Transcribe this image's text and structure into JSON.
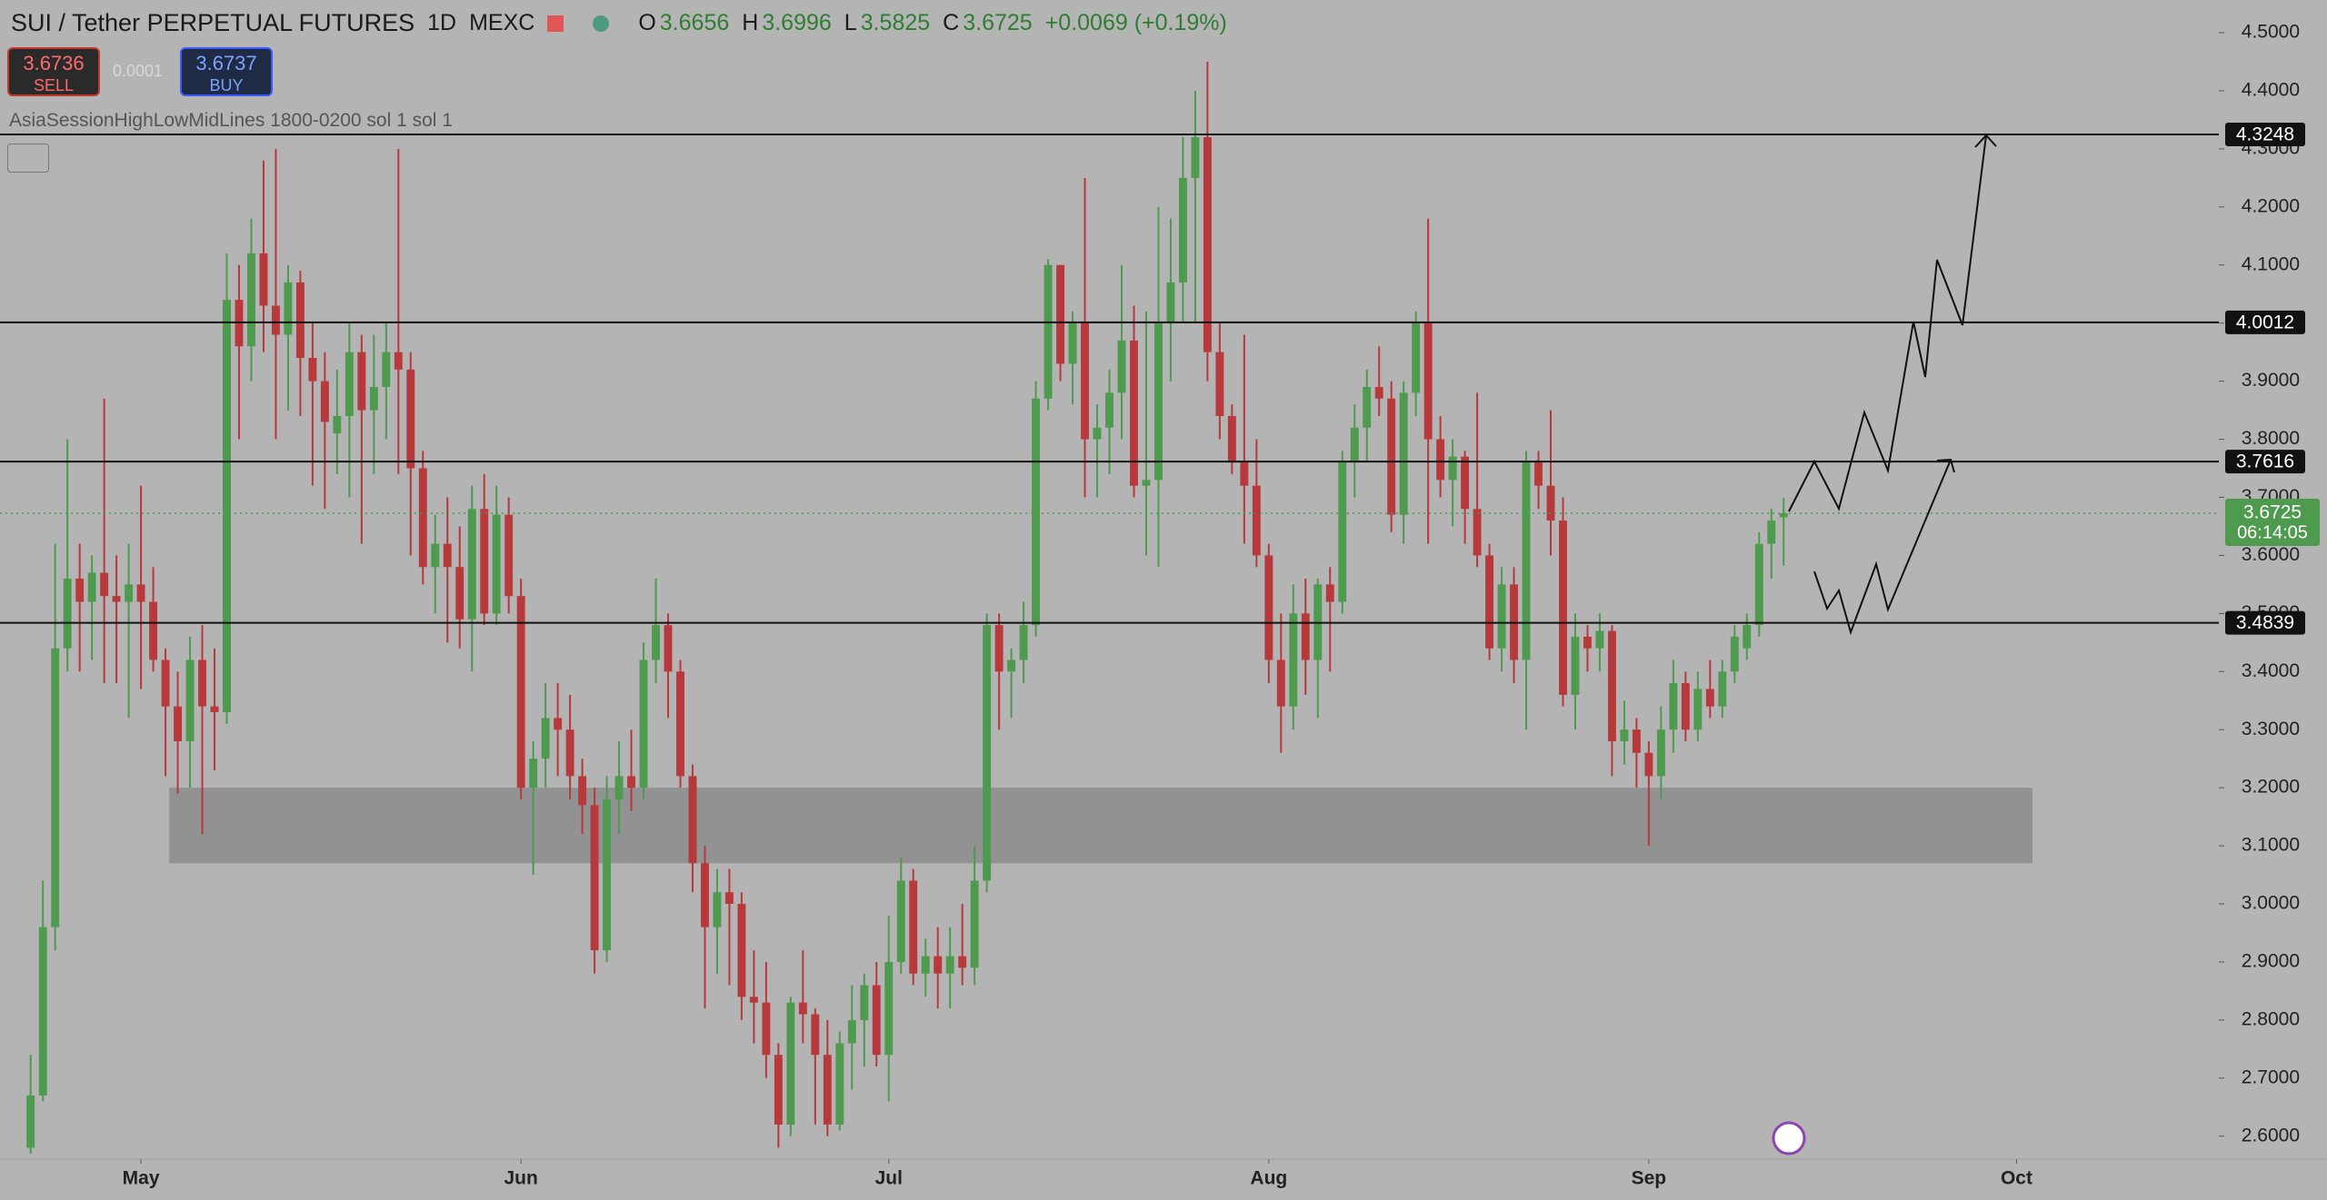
{
  "header": {
    "symbol": "SUI / Tether PERPETUAL FUTURES",
    "interval": "1D",
    "exchange": "MEXC",
    "open_key": "O",
    "high_key": "H",
    "low_key": "L",
    "close_key": "C",
    "change": "+0.0069 (+0.19%)",
    "sell_price": "3.6736",
    "sell_label": "SELL",
    "spread": "0.0001",
    "buy_price": "3.6737",
    "buy_label": "BUY",
    "indicator": "AsiaSessionHighLowMidLines 1800-0200 sol 1 sol 1"
  },
  "chart_data": {
    "type": "candlestick",
    "up_color": "#4e9a4e",
    "down_color": "#b8393c",
    "ylim": [
      2.5605,
      4.5563
    ],
    "yticks": [
      {
        "value": 2.6,
        "label": "2.6000"
      },
      {
        "value": 2.7,
        "label": "2.7000"
      },
      {
        "value": 2.8,
        "label": "2.8000"
      },
      {
        "value": 2.9,
        "label": "2.9000"
      },
      {
        "value": 3.0,
        "label": "3.0000"
      },
      {
        "value": 3.1,
        "label": "3.1000"
      },
      {
        "value": 3.2,
        "label": "3.2000"
      },
      {
        "value": 3.3,
        "label": "3.3000"
      },
      {
        "value": 3.4,
        "label": "3.4000"
      },
      {
        "value": 3.5,
        "label": "3.5000"
      },
      {
        "value": 3.6,
        "label": "3.6000"
      },
      {
        "value": 3.7,
        "label": "3.7000"
      },
      {
        "value": 3.8,
        "label": "3.8000"
      },
      {
        "value": 3.9,
        "label": "3.9000"
      },
      {
        "value": 4.0,
        "label": "4.0000"
      },
      {
        "value": 4.1,
        "label": "4.1000"
      },
      {
        "value": 4.2,
        "label": "4.2000"
      },
      {
        "value": 4.3,
        "label": "4.3000"
      },
      {
        "value": 4.4,
        "label": "4.4000"
      },
      {
        "value": 4.5,
        "label": "4.5000"
      }
    ],
    "xlim": [
      -2.5,
      178.5
    ],
    "xticks": [
      {
        "value": 9,
        "label": "May"
      },
      {
        "value": 40,
        "label": "Jun"
      },
      {
        "value": 70,
        "label": "Jul"
      },
      {
        "value": 101,
        "label": "Aug"
      },
      {
        "value": 132,
        "label": "Sep"
      },
      {
        "value": 162,
        "label": "Oct"
      }
    ],
    "levels": [
      4.3248,
      4.0012,
      3.7616,
      3.4839
    ],
    "zone": {
      "top": 3.2,
      "bottom": 3.07,
      "start": 11.3,
      "end": 163.3
    },
    "countdown": "06:14:05",
    "ohlc": [
      [
        2.58,
        2.74,
        2.57,
        2.67
      ],
      [
        2.67,
        3.04,
        2.66,
        2.96
      ],
      [
        2.96,
        3.62,
        2.92,
        3.44
      ],
      [
        3.44,
        3.8,
        3.4,
        3.56
      ],
      [
        3.56,
        3.62,
        3.4,
        3.52
      ],
      [
        3.52,
        3.6,
        3.42,
        3.57
      ],
      [
        3.57,
        3.87,
        3.38,
        3.53
      ],
      [
        3.53,
        3.6,
        3.38,
        3.52
      ],
      [
        3.52,
        3.62,
        3.32,
        3.55
      ],
      [
        3.55,
        3.72,
        3.37,
        3.52
      ],
      [
        3.52,
        3.58,
        3.4,
        3.42
      ],
      [
        3.42,
        3.44,
        3.22,
        3.34
      ],
      [
        3.34,
        3.4,
        3.19,
        3.28
      ],
      [
        3.28,
        3.46,
        3.2,
        3.42
      ],
      [
        3.42,
        3.48,
        3.12,
        3.34
      ],
      [
        3.34,
        3.44,
        3.23,
        3.33
      ],
      [
        3.33,
        4.12,
        3.31,
        4.04
      ],
      [
        4.04,
        4.1,
        3.8,
        3.96
      ],
      [
        3.96,
        4.18,
        3.9,
        4.12
      ],
      [
        4.12,
        4.28,
        3.95,
        4.03
      ],
      [
        4.03,
        4.3,
        3.8,
        3.98
      ],
      [
        3.98,
        4.1,
        3.85,
        4.07
      ],
      [
        4.07,
        4.09,
        3.84,
        3.94
      ],
      [
        3.94,
        4.0,
        3.72,
        3.9
      ],
      [
        3.9,
        3.95,
        3.68,
        3.83
      ],
      [
        3.81,
        3.92,
        3.74,
        3.84
      ],
      [
        3.84,
        4.0,
        3.7,
        3.95
      ],
      [
        3.95,
        3.98,
        3.62,
        3.85
      ],
      [
        3.85,
        3.98,
        3.74,
        3.89
      ],
      [
        3.89,
        4.0,
        3.8,
        3.95
      ],
      [
        3.95,
        4.3,
        3.74,
        3.92
      ],
      [
        3.92,
        3.95,
        3.6,
        3.75
      ],
      [
        3.75,
        3.78,
        3.55,
        3.58
      ],
      [
        3.58,
        3.67,
        3.5,
        3.62
      ],
      [
        3.62,
        3.7,
        3.45,
        3.58
      ],
      [
        3.58,
        3.65,
        3.44,
        3.49
      ],
      [
        3.49,
        3.72,
        3.4,
        3.68
      ],
      [
        3.68,
        3.74,
        3.48,
        3.5
      ],
      [
        3.5,
        3.72,
        3.48,
        3.67
      ],
      [
        3.67,
        3.7,
        3.5,
        3.53
      ],
      [
        3.53,
        3.56,
        3.18,
        3.2
      ],
      [
        3.2,
        3.28,
        3.05,
        3.25
      ],
      [
        3.25,
        3.38,
        3.2,
        3.32
      ],
      [
        3.32,
        3.38,
        3.22,
        3.3
      ],
      [
        3.3,
        3.36,
        3.18,
        3.22
      ],
      [
        3.22,
        3.25,
        3.12,
        3.17
      ],
      [
        3.17,
        3.2,
        2.88,
        2.92
      ],
      [
        2.92,
        3.22,
        2.9,
        3.18
      ],
      [
        3.18,
        3.28,
        3.12,
        3.22
      ],
      [
        3.22,
        3.3,
        3.16,
        3.2
      ],
      [
        3.2,
        3.45,
        3.18,
        3.42
      ],
      [
        3.42,
        3.56,
        3.38,
        3.48
      ],
      [
        3.48,
        3.5,
        3.32,
        3.4
      ],
      [
        3.4,
        3.42,
        3.2,
        3.22
      ],
      [
        3.22,
        3.24,
        3.02,
        3.07
      ],
      [
        3.07,
        3.1,
        2.82,
        2.96
      ],
      [
        2.96,
        3.06,
        2.88,
        3.02
      ],
      [
        3.02,
        3.06,
        2.86,
        3.0
      ],
      [
        3.0,
        3.02,
        2.8,
        2.84
      ],
      [
        2.84,
        2.92,
        2.76,
        2.83
      ],
      [
        2.83,
        2.9,
        2.7,
        2.74
      ],
      [
        2.74,
        2.76,
        2.58,
        2.62
      ],
      [
        2.62,
        2.84,
        2.6,
        2.83
      ],
      [
        2.83,
        2.92,
        2.76,
        2.81
      ],
      [
        2.81,
        2.82,
        2.62,
        2.74
      ],
      [
        2.74,
        2.8,
        2.6,
        2.62
      ],
      [
        2.62,
        2.78,
        2.61,
        2.76
      ],
      [
        2.76,
        2.86,
        2.68,
        2.8
      ],
      [
        2.8,
        2.88,
        2.72,
        2.86
      ],
      [
        2.86,
        2.9,
        2.72,
        2.74
      ],
      [
        2.74,
        2.98,
        2.66,
        2.9
      ],
      [
        2.9,
        3.08,
        2.88,
        3.04
      ],
      [
        3.04,
        3.06,
        2.86,
        2.88
      ],
      [
        2.88,
        2.94,
        2.84,
        2.91
      ],
      [
        2.91,
        2.96,
        2.82,
        2.88
      ],
      [
        2.88,
        2.96,
        2.82,
        2.91
      ],
      [
        2.91,
        3.0,
        2.86,
        2.89
      ],
      [
        2.89,
        3.1,
        2.86,
        3.04
      ],
      [
        3.04,
        3.5,
        3.02,
        3.48
      ],
      [
        3.48,
        3.5,
        3.3,
        3.4
      ],
      [
        3.4,
        3.44,
        3.32,
        3.42
      ],
      [
        3.42,
        3.52,
        3.38,
        3.48
      ],
      [
        3.48,
        3.9,
        3.46,
        3.87
      ],
      [
        3.87,
        4.11,
        3.85,
        4.1
      ],
      [
        4.1,
        4.1,
        3.9,
        3.93
      ],
      [
        3.93,
        4.02,
        3.86,
        4.0
      ],
      [
        4.0,
        4.25,
        3.7,
        3.8
      ],
      [
        3.8,
        3.86,
        3.7,
        3.82
      ],
      [
        3.82,
        3.92,
        3.74,
        3.88
      ],
      [
        3.88,
        4.1,
        3.8,
        3.97
      ],
      [
        3.97,
        4.03,
        3.7,
        3.72
      ],
      [
        3.72,
        4.02,
        3.6,
        3.73
      ],
      [
        3.73,
        4.2,
        3.58,
        4.0
      ],
      [
        4.0,
        4.18,
        3.9,
        4.07
      ],
      [
        4.07,
        4.32,
        4.0,
        4.25
      ],
      [
        4.25,
        4.4,
        4.0,
        4.32
      ],
      [
        4.32,
        4.45,
        3.9,
        3.95
      ],
      [
        3.95,
        4.0,
        3.8,
        3.84
      ],
      [
        3.84,
        3.86,
        3.74,
        3.76
      ],
      [
        3.76,
        3.98,
        3.62,
        3.72
      ],
      [
        3.72,
        3.8,
        3.58,
        3.6
      ],
      [
        3.6,
        3.62,
        3.38,
        3.42
      ],
      [
        3.42,
        3.5,
        3.26,
        3.34
      ],
      [
        3.34,
        3.55,
        3.3,
        3.5
      ],
      [
        3.5,
        3.56,
        3.36,
        3.42
      ],
      [
        3.42,
        3.56,
        3.32,
        3.55
      ],
      [
        3.55,
        3.58,
        3.4,
        3.52
      ],
      [
        3.52,
        3.78,
        3.5,
        3.76
      ],
      [
        3.76,
        3.86,
        3.7,
        3.82
      ],
      [
        3.82,
        3.92,
        3.76,
        3.89
      ],
      [
        3.89,
        3.96,
        3.84,
        3.87
      ],
      [
        3.87,
        3.9,
        3.64,
        3.67
      ],
      [
        3.67,
        3.9,
        3.62,
        3.88
      ],
      [
        3.88,
        4.02,
        3.84,
        4.0
      ],
      [
        4.0,
        4.18,
        3.62,
        3.8
      ],
      [
        3.8,
        3.84,
        3.7,
        3.73
      ],
      [
        3.73,
        3.8,
        3.65,
        3.77
      ],
      [
        3.77,
        3.78,
        3.62,
        3.68
      ],
      [
        3.68,
        3.88,
        3.58,
        3.6
      ],
      [
        3.6,
        3.62,
        3.42,
        3.44
      ],
      [
        3.44,
        3.58,
        3.4,
        3.55
      ],
      [
        3.55,
        3.58,
        3.38,
        3.42
      ],
      [
        3.42,
        3.78,
        3.3,
        3.76
      ],
      [
        3.76,
        3.78,
        3.68,
        3.72
      ],
      [
        3.72,
        3.85,
        3.6,
        3.66
      ],
      [
        3.66,
        3.7,
        3.34,
        3.36
      ],
      [
        3.36,
        3.5,
        3.3,
        3.46
      ],
      [
        3.46,
        3.48,
        3.4,
        3.44
      ],
      [
        3.44,
        3.5,
        3.4,
        3.47
      ],
      [
        3.47,
        3.48,
        3.22,
        3.28
      ],
      [
        3.28,
        3.35,
        3.24,
        3.3
      ],
      [
        3.3,
        3.32,
        3.2,
        3.26
      ],
      [
        3.26,
        3.28,
        3.1,
        3.22
      ],
      [
        3.22,
        3.34,
        3.18,
        3.3
      ],
      [
        3.3,
        3.42,
        3.26,
        3.38
      ],
      [
        3.38,
        3.4,
        3.28,
        3.3
      ],
      [
        3.3,
        3.4,
        3.28,
        3.37
      ],
      [
        3.37,
        3.42,
        3.32,
        3.34
      ],
      [
        3.34,
        3.42,
        3.32,
        3.4
      ],
      [
        3.4,
        3.48,
        3.38,
        3.46
      ],
      [
        3.44,
        3.5,
        3.42,
        3.48
      ],
      [
        3.48,
        3.64,
        3.46,
        3.62
      ],
      [
        3.62,
        3.68,
        3.56,
        3.66
      ],
      [
        3.6656,
        3.6996,
        3.5825,
        3.6725
      ]
    ]
  }
}
